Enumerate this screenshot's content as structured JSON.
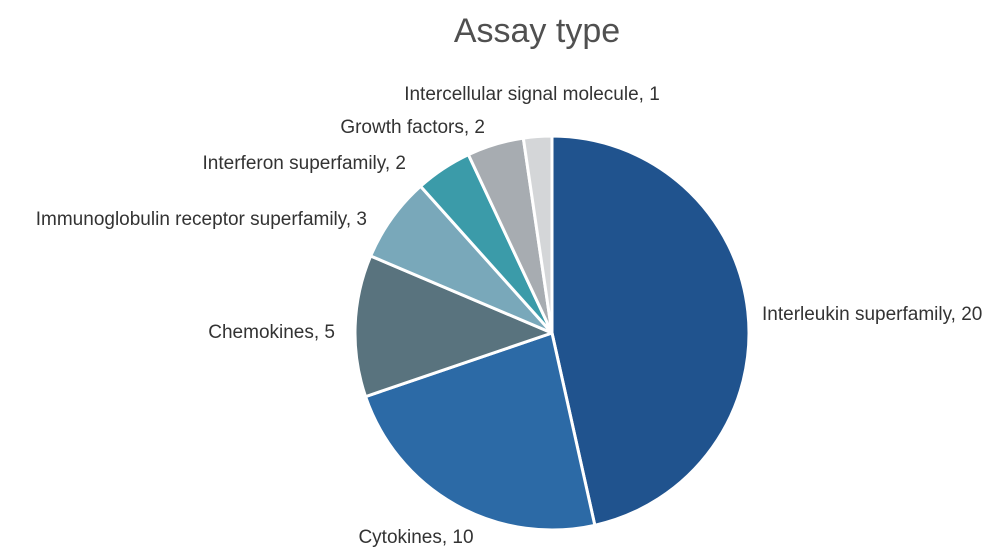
{
  "chart_data": {
    "type": "pie",
    "title": "Assay type",
    "slices": [
      {
        "label": "Interleukin superfamily",
        "value": 20,
        "color": "#20538e"
      },
      {
        "label": "Cytokines",
        "value": 10,
        "color": "#2c6aa6"
      },
      {
        "label": "Chemokines",
        "value": 5,
        "color": "#59737e"
      },
      {
        "label": "Immunoglobulin receptor superfamily",
        "value": 3,
        "color": "#79a8ba"
      },
      {
        "label": "Interferon superfamily",
        "value": 2,
        "color": "#3b9ba9"
      },
      {
        "label": "Growth factors",
        "value": 2,
        "color": "#a7acb1"
      },
      {
        "label": "Intercellular signal molecule",
        "value": 1,
        "color": "#d4d6d8"
      }
    ],
    "label_format": "{label}, {value}",
    "start_angle": "12 o'clock",
    "direction": "clockwise"
  }
}
